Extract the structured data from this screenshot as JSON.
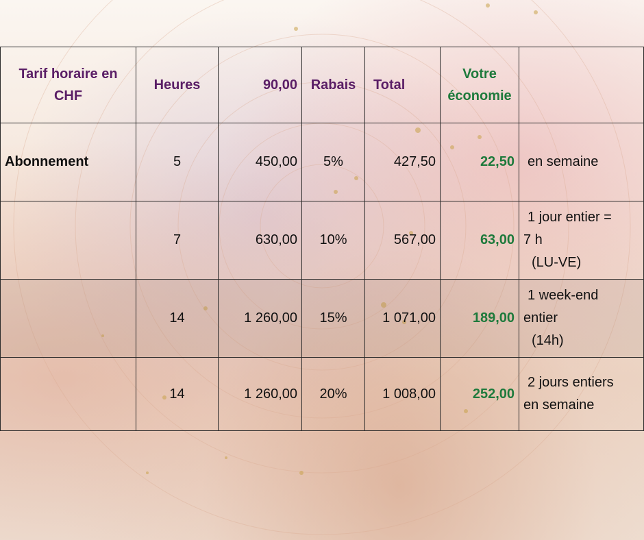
{
  "header": {
    "col1": "Tarif horaire en CHF",
    "col2": "Heures",
    "col3": "90,00",
    "col4": "Rabais",
    "col5": "Total",
    "col6_line1": "Votre",
    "col6_line2": "économie",
    "col7": ""
  },
  "rows": [
    {
      "label": "Abonnement",
      "heures": "5",
      "montant": "450,00",
      "rabais": "5%",
      "total": "427,50",
      "economie": "22,50",
      "note_lines": [
        "en semaine"
      ]
    },
    {
      "label": "",
      "heures": "7",
      "montant": "630,00",
      "rabais": "10%",
      "total": "567,00",
      "economie": "63,00",
      "note_lines": [
        "1 jour entier =",
        "7 h",
        "(LU-VE)"
      ]
    },
    {
      "label": "",
      "heures": "14",
      "montant": "1 260,00",
      "rabais": "15%",
      "total": "1 071,00",
      "economie": "189,00",
      "note_lines": [
        "1 week-end",
        "entier",
        "(14h)"
      ]
    },
    {
      "label": "",
      "heures": "14",
      "montant": "1 260,00",
      "rabais": "20%",
      "total": "1 008,00",
      "economie": "252,00",
      "note_lines": [
        "2 jours entiers",
        "en semaine"
      ]
    }
  ],
  "colors": {
    "header_text": "#5a1e66",
    "savings_text": "#1e7a3c",
    "border": "#2a2a2a"
  }
}
